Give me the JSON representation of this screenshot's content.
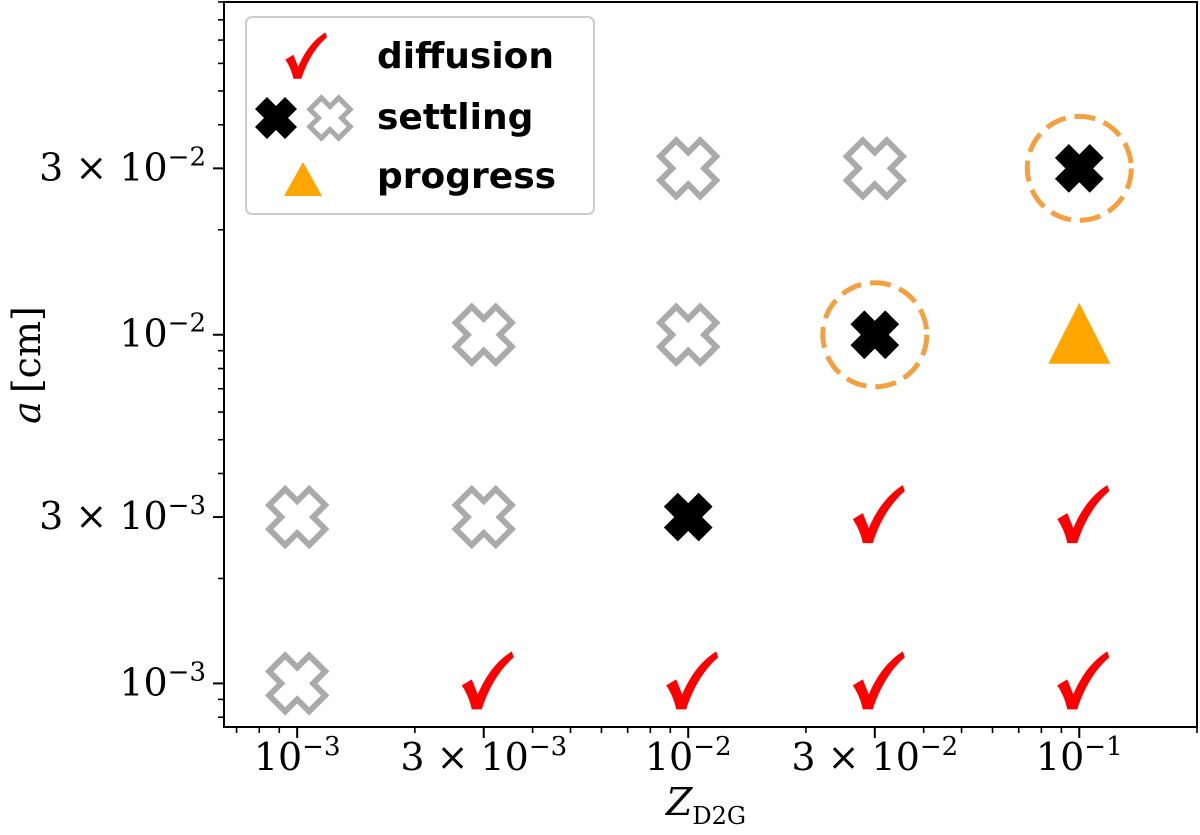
{
  "chart_data": {
    "type": "scatter",
    "xscale": "log",
    "yscale": "log",
    "xlim": [
      0.00065,
      0.2
    ],
    "ylim": [
      0.00075,
      0.09
    ],
    "x_ticks": [
      {
        "value": 0.001,
        "mantissa": "",
        "exp": "−3"
      },
      {
        "value": 0.003,
        "mantissa": "3 × ",
        "exp": "−3"
      },
      {
        "value": 0.01,
        "mantissa": "",
        "exp": "−2"
      },
      {
        "value": 0.03,
        "mantissa": "3 × ",
        "exp": "−2"
      },
      {
        "value": 0.1,
        "mantissa": "",
        "exp": "−1"
      }
    ],
    "y_ticks": [
      {
        "value": 0.001,
        "mantissa": "",
        "exp": "−3"
      },
      {
        "value": 0.003,
        "mantissa": "3 × ",
        "exp": "−3"
      },
      {
        "value": 0.01,
        "mantissa": "",
        "exp": "−2"
      },
      {
        "value": 0.03,
        "mantissa": "3 × ",
        "exp": "−2"
      }
    ],
    "xlabel": {
      "main": "Z",
      "sub": "D2G"
    },
    "ylabel": {
      "var": "a",
      "unit": "[cm]"
    },
    "legend": {
      "placement": "upper-left",
      "entries": [
        {
          "label": "diffusion",
          "markers": [
            "check"
          ]
        },
        {
          "label": "settling",
          "markers": [
            "x-filled",
            "x-hollow"
          ]
        },
        {
          "label": "progress",
          "markers": [
            "triangle"
          ]
        }
      ]
    },
    "colors": {
      "check": "#ff0000",
      "x_filled": "#000000",
      "x_hollow": "#aaaaaa",
      "triangle": "#ffa500",
      "circle": "#f5a040"
    },
    "points": [
      {
        "x": 0.001,
        "y": 0.001,
        "marker": "x-hollow"
      },
      {
        "x": 0.003,
        "y": 0.001,
        "marker": "check"
      },
      {
        "x": 0.01,
        "y": 0.001,
        "marker": "check"
      },
      {
        "x": 0.03,
        "y": 0.001,
        "marker": "check"
      },
      {
        "x": 0.1,
        "y": 0.001,
        "marker": "check"
      },
      {
        "x": 0.001,
        "y": 0.003,
        "marker": "x-hollow"
      },
      {
        "x": 0.003,
        "y": 0.003,
        "marker": "x-hollow"
      },
      {
        "x": 0.01,
        "y": 0.003,
        "marker": "x-filled"
      },
      {
        "x": 0.03,
        "y": 0.003,
        "marker": "check"
      },
      {
        "x": 0.1,
        "y": 0.003,
        "marker": "check"
      },
      {
        "x": 0.003,
        "y": 0.01,
        "marker": "x-hollow"
      },
      {
        "x": 0.01,
        "y": 0.01,
        "marker": "x-hollow"
      },
      {
        "x": 0.03,
        "y": 0.01,
        "marker": "x-filled",
        "circled": true
      },
      {
        "x": 0.1,
        "y": 0.01,
        "marker": "triangle"
      },
      {
        "x": 0.01,
        "y": 0.03,
        "marker": "x-hollow"
      },
      {
        "x": 0.03,
        "y": 0.03,
        "marker": "x-hollow"
      },
      {
        "x": 0.1,
        "y": 0.03,
        "marker": "x-filled",
        "circled": true
      }
    ]
  }
}
